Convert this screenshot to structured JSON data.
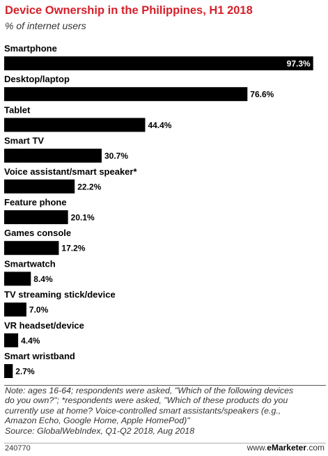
{
  "header": {
    "title": "Device Ownership in the Philippines, H1 2018",
    "subtitle": "% of internet users"
  },
  "chart_data": {
    "type": "bar",
    "orientation": "horizontal",
    "categories": [
      "Smartphone",
      "Desktop/laptop",
      "Tablet",
      "Smart TV",
      "Voice assistant/smart speaker*",
      "Feature phone",
      "Games console",
      "Smartwatch",
      "TV streaming stick/device",
      "VR headset/device",
      "Smart wristband"
    ],
    "values": [
      97.3,
      76.6,
      44.4,
      30.7,
      22.2,
      20.1,
      17.2,
      8.4,
      7.0,
      4.4,
      2.7
    ],
    "value_labels": [
      "97.3%",
      "76.6%",
      "44.4%",
      "30.7%",
      "22.2%",
      "20.1%",
      "17.2%",
      "8.4%",
      "7.0%",
      "4.4%",
      "2.7%"
    ],
    "xlim": [
      0,
      100
    ],
    "bar_color": "#000000",
    "grid": false,
    "legend": "none"
  },
  "footer": {
    "note_lines": [
      "Note: ages 16-64; respondents were asked, \"Which of the following devices",
      "do you own?\"; *respondents were asked, \"Which of these products do you",
      "currently use at home? Voice-controlled smart assistants/speakers (e.g.,",
      "Amazon Echo, Google Home, Apple HomePod)\"",
      "Source: GlobalWebIndex, Q1-Q2 2018, Aug 2018"
    ],
    "chart_id": "240770",
    "brand_prefix": "www.",
    "brand_name": "eMarketer",
    "brand_suffix": ".com"
  }
}
